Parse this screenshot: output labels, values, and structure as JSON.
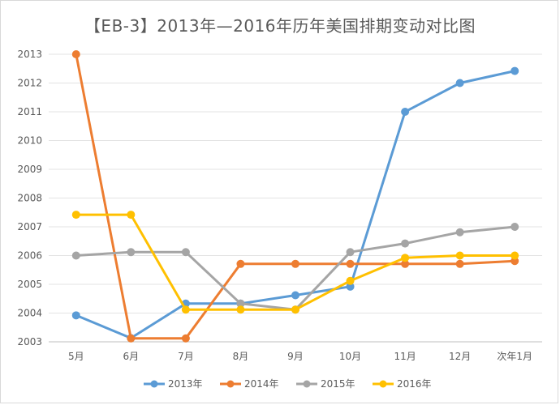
{
  "chart_data": {
    "type": "line",
    "title": "【EB-3】2013年—2016年历年美国排期变动对比图",
    "categories": [
      "5月",
      "6月",
      "7月",
      "8月",
      "9月",
      "10月",
      "11月",
      "12月",
      "次年1月"
    ],
    "y_tick_labels": [
      "2003",
      "2004",
      "2005",
      "2006",
      "2007",
      "2008",
      "2009",
      "2010",
      "2011",
      "2012",
      "2013"
    ],
    "ylim": [
      2003,
      2013
    ],
    "grid": true,
    "legend_position": "bottom",
    "series": [
      {
        "name": "2013年",
        "color": "#5b9bd5",
        "values": [
          2003.92,
          2003.13,
          2004.33,
          2004.33,
          2004.62,
          2004.92,
          2011.0,
          2012.0,
          2012.42
        ]
      },
      {
        "name": "2014年",
        "color": "#ed7d31",
        "values": [
          2013.0,
          2003.12,
          2003.12,
          2005.71,
          2005.71,
          2005.71,
          2005.71,
          2005.71,
          2005.81
        ]
      },
      {
        "name": "2015年",
        "color": "#a5a5a5",
        "values": [
          2006.0,
          2006.12,
          2006.12,
          2004.33,
          2004.12,
          2006.12,
          2006.42,
          2006.81,
          2007.0
        ]
      },
      {
        "name": "2016年",
        "color": "#ffc000",
        "values": [
          2007.42,
          2007.42,
          2004.12,
          2004.12,
          2004.12,
          2005.12,
          2005.92,
          2006.0,
          2006.0
        ]
      }
    ]
  }
}
